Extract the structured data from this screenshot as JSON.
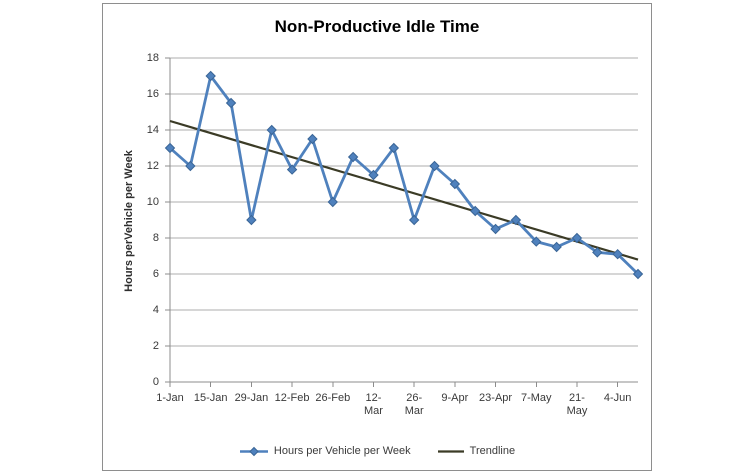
{
  "chart_data": {
    "type": "line",
    "title": "Non-Productive Idle Time",
    "ylabel": "Hours perVehicle per Week",
    "xlabel": "",
    "ylim": [
      0,
      18
    ],
    "yticks": [
      0,
      2,
      4,
      6,
      8,
      10,
      12,
      14,
      16,
      18
    ],
    "x_tick_labels": [
      "1-Jan",
      "15-Jan",
      "29-Jan",
      "12-Feb",
      "26-Feb",
      "12-\nMar",
      "26-\nMar",
      "9-Apr",
      "23-Apr",
      "7-May",
      "21-\nMay",
      "4-Jun"
    ],
    "x_tick_weeks": [
      0,
      2,
      4,
      6,
      8,
      10,
      12,
      14,
      16,
      18,
      20,
      22
    ],
    "grid": "horizontal",
    "legend_position": "bottom",
    "series": [
      {
        "name": "Hours per Vehicle per Week",
        "type": "line",
        "color": "#4F81BD",
        "marker": "diamond",
        "values": [
          13,
          12,
          17,
          15.5,
          9,
          14,
          11.8,
          13.5,
          10,
          12.5,
          11.5,
          13,
          9,
          12,
          11,
          9.5,
          8.5,
          9,
          7.8,
          7.5,
          8,
          7.2,
          7.1,
          6
        ]
      },
      {
        "name": "Trendline",
        "type": "trendline",
        "color": "#3B3B26",
        "start": 14.5,
        "end": 6.8
      }
    ],
    "colors": {
      "gridline": "#ACACAC",
      "axis": "#8C8C8C",
      "marker_edge": "#3A6596",
      "frame_border": "#8E8E8E",
      "tick_text": "#3A3A3A",
      "title_text": "#000000"
    }
  }
}
